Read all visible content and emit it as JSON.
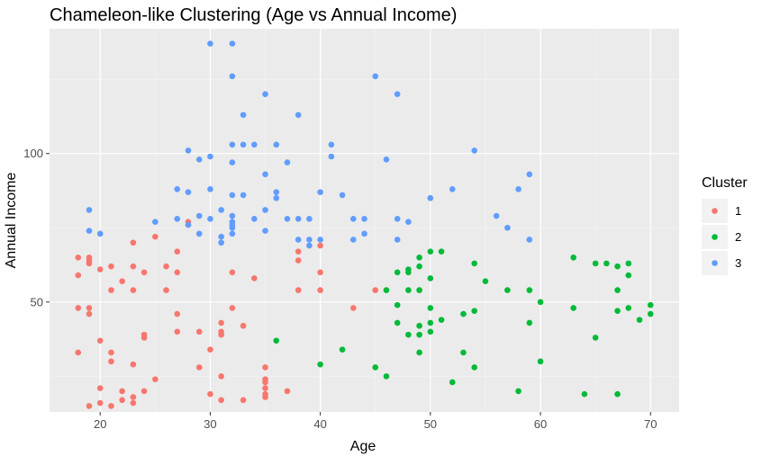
{
  "chart_data": {
    "type": "scatter",
    "title": "Chameleon-like Clustering (Age vs Annual Income)",
    "xlabel": "Age",
    "ylabel": "Annual Income",
    "xlim": [
      15.4,
      72.6
    ],
    "ylim": [
      13,
      142
    ],
    "x_ticks": [
      20,
      30,
      40,
      50,
      60,
      70
    ],
    "y_ticks": [
      50,
      100
    ],
    "grid": true,
    "legend": {
      "title": "Cluster",
      "placement": "right",
      "items": [
        {
          "label": "1",
          "color": "#F8766D"
        },
        {
          "label": "2",
          "color": "#00BA38"
        },
        {
          "label": "3",
          "color": "#619CFF"
        }
      ]
    },
    "series": [
      {
        "name": "1",
        "color": "#F8766D",
        "points": [
          [
            18,
            65
          ],
          [
            18,
            59
          ],
          [
            18,
            48
          ],
          [
            18,
            33
          ],
          [
            19,
            65
          ],
          [
            19,
            63
          ],
          [
            19,
            64
          ],
          [
            19,
            48
          ],
          [
            19,
            46
          ],
          [
            19,
            15
          ],
          [
            20,
            61
          ],
          [
            20,
            37
          ],
          [
            20,
            16
          ],
          [
            20,
            21
          ],
          [
            21,
            62
          ],
          [
            21,
            54
          ],
          [
            21,
            33
          ],
          [
            21,
            30
          ],
          [
            21,
            15
          ],
          [
            22,
            57
          ],
          [
            22,
            20
          ],
          [
            22,
            17
          ],
          [
            23,
            70
          ],
          [
            23,
            62
          ],
          [
            23,
            54
          ],
          [
            23,
            29
          ],
          [
            23,
            18
          ],
          [
            23,
            16
          ],
          [
            24,
            60
          ],
          [
            24,
            39
          ],
          [
            24,
            38
          ],
          [
            24,
            20
          ],
          [
            25,
            72
          ],
          [
            25,
            24
          ],
          [
            26,
            62
          ],
          [
            26,
            54
          ],
          [
            27,
            67
          ],
          [
            27,
            60
          ],
          [
            27,
            46
          ],
          [
            27,
            40
          ],
          [
            28,
            77
          ],
          [
            28,
            76
          ],
          [
            29,
            40
          ],
          [
            29,
            28
          ],
          [
            30,
            34
          ],
          [
            30,
            19
          ],
          [
            31,
            40
          ],
          [
            31,
            25
          ],
          [
            31,
            17
          ],
          [
            31,
            43
          ],
          [
            31,
            39
          ],
          [
            32,
            60
          ],
          [
            32,
            48
          ],
          [
            33,
            42
          ],
          [
            33,
            17
          ],
          [
            34,
            58
          ],
          [
            35,
            28
          ],
          [
            35,
            24
          ],
          [
            35,
            23
          ],
          [
            35,
            21
          ],
          [
            35,
            19
          ],
          [
            35,
            18
          ],
          [
            37,
            20
          ],
          [
            38,
            67
          ],
          [
            38,
            64
          ],
          [
            38,
            54
          ],
          [
            40,
            69
          ],
          [
            40,
            60
          ],
          [
            40,
            54
          ],
          [
            43,
            48
          ],
          [
            45,
            54
          ]
        ]
      },
      {
        "name": "2",
        "color": "#00BA38",
        "points": [
          [
            36,
            37
          ],
          [
            40,
            29
          ],
          [
            42,
            34
          ],
          [
            45,
            28
          ],
          [
            46,
            54
          ],
          [
            46,
            25
          ],
          [
            47,
            60
          ],
          [
            47,
            49
          ],
          [
            47,
            43
          ],
          [
            48,
            61
          ],
          [
            48,
            60
          ],
          [
            48,
            54
          ],
          [
            48,
            39
          ],
          [
            49,
            65
          ],
          [
            49,
            62
          ],
          [
            49,
            54
          ],
          [
            49,
            42
          ],
          [
            49,
            39
          ],
          [
            49,
            33
          ],
          [
            50,
            58
          ],
          [
            50,
            48
          ],
          [
            50,
            43
          ],
          [
            50,
            40
          ],
          [
            50,
            67
          ],
          [
            51,
            67
          ],
          [
            51,
            44
          ],
          [
            52,
            23
          ],
          [
            53,
            46
          ],
          [
            53,
            33
          ],
          [
            54,
            63
          ],
          [
            54,
            47
          ],
          [
            54,
            28
          ],
          [
            55,
            57
          ],
          [
            57,
            54
          ],
          [
            58,
            20
          ],
          [
            59,
            54
          ],
          [
            59,
            43
          ],
          [
            60,
            50
          ],
          [
            60,
            30
          ],
          [
            63,
            65
          ],
          [
            63,
            48
          ],
          [
            64,
            19
          ],
          [
            65,
            63
          ],
          [
            65,
            38
          ],
          [
            66,
            63
          ],
          [
            67,
            62
          ],
          [
            67,
            54
          ],
          [
            67,
            47
          ],
          [
            67,
            19
          ],
          [
            68,
            63
          ],
          [
            68,
            59
          ],
          [
            68,
            48
          ],
          [
            69,
            44
          ],
          [
            70,
            49
          ],
          [
            70,
            46
          ]
        ]
      },
      {
        "name": "3",
        "color": "#619CFF",
        "points": [
          [
            19,
            81
          ],
          [
            19,
            74
          ],
          [
            20,
            73
          ],
          [
            25,
            77
          ],
          [
            27,
            88
          ],
          [
            27,
            78
          ],
          [
            28,
            101
          ],
          [
            28,
            87
          ],
          [
            28,
            76
          ],
          [
            29,
            98
          ],
          [
            29,
            79
          ],
          [
            29,
            73
          ],
          [
            30,
            137
          ],
          [
            30,
            99
          ],
          [
            30,
            88
          ],
          [
            30,
            78
          ],
          [
            31,
            81
          ],
          [
            31,
            72
          ],
          [
            31,
            70
          ],
          [
            32,
            137
          ],
          [
            32,
            126
          ],
          [
            32,
            103
          ],
          [
            32,
            97
          ],
          [
            32,
            86
          ],
          [
            32,
            77
          ],
          [
            32,
            76
          ],
          [
            32,
            75
          ],
          [
            32,
            73
          ],
          [
            32,
            79
          ],
          [
            33,
            113
          ],
          [
            33,
            103
          ],
          [
            33,
            86
          ],
          [
            34,
            103
          ],
          [
            34,
            78
          ],
          [
            35,
            120
          ],
          [
            35,
            93
          ],
          [
            35,
            81
          ],
          [
            35,
            74
          ],
          [
            36,
            103
          ],
          [
            36,
            87
          ],
          [
            36,
            85
          ],
          [
            37,
            97
          ],
          [
            37,
            78
          ],
          [
            38,
            113
          ],
          [
            38,
            78
          ],
          [
            38,
            71
          ],
          [
            39,
            78
          ],
          [
            39,
            71
          ],
          [
            39,
            69
          ],
          [
            40,
            87
          ],
          [
            40,
            71
          ],
          [
            41,
            103
          ],
          [
            41,
            99
          ],
          [
            42,
            86
          ],
          [
            43,
            78
          ],
          [
            43,
            71
          ],
          [
            44,
            78
          ],
          [
            44,
            73
          ],
          [
            45,
            126
          ],
          [
            46,
            98
          ],
          [
            47,
            120
          ],
          [
            47,
            78
          ],
          [
            47,
            71
          ],
          [
            48,
            77
          ],
          [
            50,
            85
          ],
          [
            52,
            88
          ],
          [
            54,
            101
          ],
          [
            56,
            79
          ],
          [
            57,
            75
          ],
          [
            58,
            88
          ],
          [
            59,
            93
          ],
          [
            59,
            71
          ]
        ]
      }
    ]
  }
}
